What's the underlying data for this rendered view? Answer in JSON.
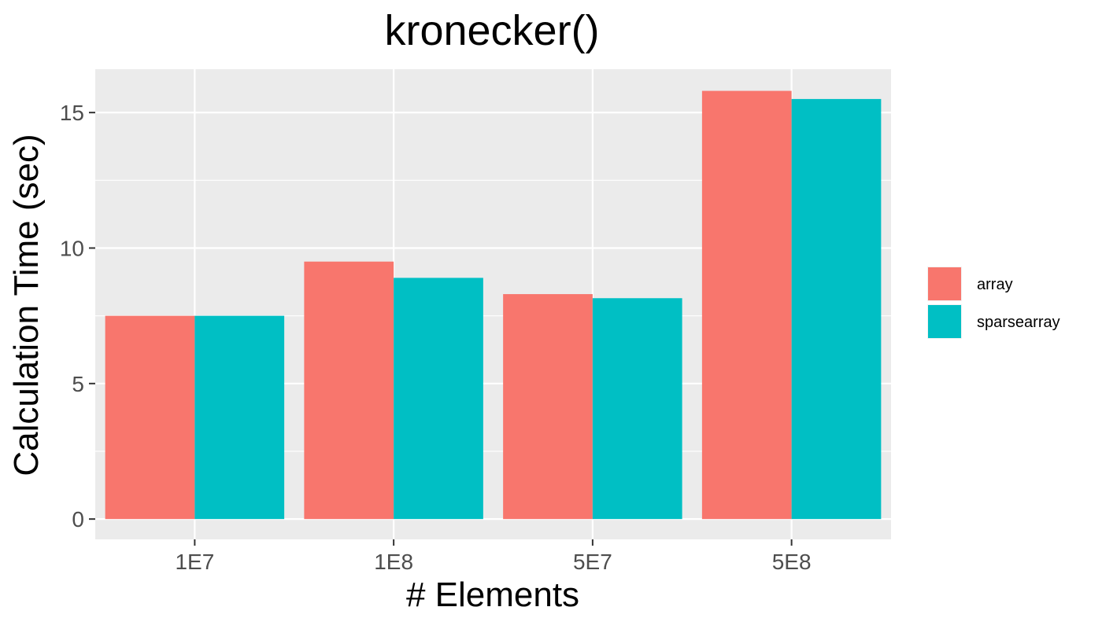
{
  "chart_data": {
    "type": "bar",
    "title": "kronecker()",
    "xlabel": "# Elements",
    "ylabel": "Calculation Time (sec)",
    "categories": [
      "1E7",
      "1E8",
      "5E7",
      "5E8"
    ],
    "series": [
      {
        "name": "array",
        "color": "#F8766D",
        "values": [
          7.5,
          9.5,
          8.3,
          15.8
        ]
      },
      {
        "name": "sparsearray",
        "color": "#00BFC4",
        "values": [
          7.5,
          8.9,
          8.15,
          15.5
        ]
      }
    ],
    "ylim": [
      -0.75,
      16.6
    ],
    "yticks": [
      0,
      5,
      10,
      15
    ],
    "grid": true,
    "legend": "right"
  }
}
